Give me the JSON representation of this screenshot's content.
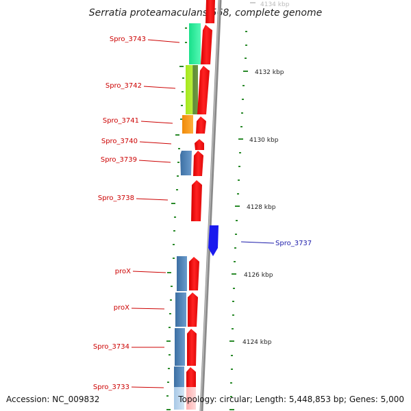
{
  "title": "Serratia proteamaculans 568, complete genome",
  "footer": {
    "accession": "Accession: NC_009832",
    "topology": "Topology: circular; Length: 5,448,853 bp; Genes: 5,000"
  },
  "colors": {
    "forward_cds": "#ee1111",
    "reverse_cds": "#4a7fb5",
    "highlight_cds": "#1a1aee",
    "backbone": "#888888",
    "tick": "#2a8a2a",
    "label_line_red": "#cc0000",
    "label_line_blue": "#1a1aaa"
  },
  "kbp_labels": [
    {
      "kbp": 4134,
      "text": "4134 kbp"
    },
    {
      "kbp": 4132,
      "text": "4132 kbp"
    },
    {
      "kbp": 4130,
      "text": "4130 kbp"
    },
    {
      "kbp": 4128,
      "text": "4128 kbp"
    },
    {
      "kbp": 4126,
      "text": "4126 kbp"
    },
    {
      "kbp": 4124,
      "text": "4124 kbp"
    }
  ],
  "gene_labels": [
    {
      "name": "Spro_3743",
      "color": "red"
    },
    {
      "name": "Spro_3742",
      "color": "red"
    },
    {
      "name": "Spro_3741",
      "color": "red"
    },
    {
      "name": "Spro_3740",
      "color": "red"
    },
    {
      "name": "Spro_3739",
      "color": "red"
    },
    {
      "name": "Spro_3738",
      "color": "red"
    },
    {
      "name": "Spro_3737",
      "color": "blue"
    },
    {
      "name": "proX",
      "color": "red"
    },
    {
      "name": "proX",
      "color": "red"
    },
    {
      "name": "Spro_3734",
      "color": "red"
    },
    {
      "name": "Spro_3733",
      "color": "red"
    }
  ]
}
